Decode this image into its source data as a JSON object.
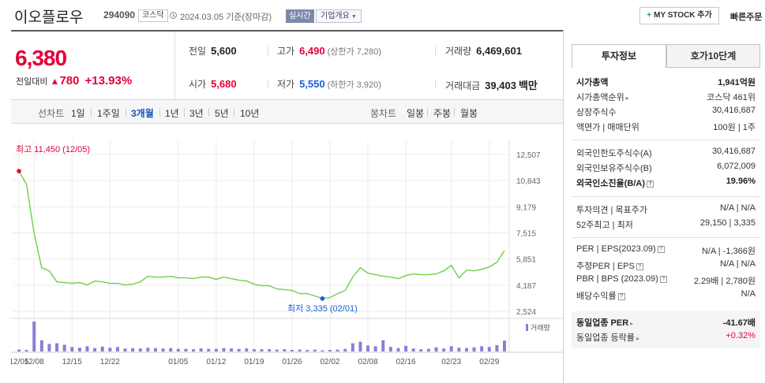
{
  "header": {
    "name": "이오플로우",
    "code": "294090",
    "market": "코스닥",
    "date": "2024.03.05 기준(장마감)",
    "realtime": "실시간",
    "company": "기업개요",
    "mystock": "MY STOCK 추가",
    "quick_order": "빠른주문"
  },
  "price": {
    "current": "6,380",
    "change_label": "전일대비",
    "change": "780",
    "change_pct": "+13.93%",
    "prev_label": "전일",
    "prev": "5,600",
    "open_label": "시가",
    "open": "5,680",
    "high_label": "고가",
    "high": "6,490",
    "upper_limit": "(상한가 7,280)",
    "low_label": "저가",
    "low": "5,550",
    "lower_limit": "(하한가 3,920)",
    "volume_label": "거래량",
    "volume": "6,469,601",
    "amount_label": "거래대금",
    "amount": "39,403",
    "amount_unit": "백만"
  },
  "tabs": {
    "line_label": "선차트",
    "periods": [
      "1일",
      "1주일",
      "3개월",
      "1년",
      "3년",
      "5년",
      "10년"
    ],
    "active": "3개월",
    "candle_label": "봉차트",
    "candles": [
      "일봉",
      "주봉",
      "월봉"
    ]
  },
  "chart_data": {
    "type": "line",
    "y_ticks": [
      "12,507",
      "10,843",
      "9,179",
      "7,515",
      "5,851",
      "4,187",
      "2,524"
    ],
    "ylim": [
      2524,
      12507
    ],
    "x_ticks": [
      "12/05",
      "12/08",
      "12/15",
      "12/22",
      "01/05",
      "01/12",
      "01/19",
      "01/26",
      "02/02",
      "02/08",
      "02/16",
      "02/23",
      "02/29"
    ],
    "volume_label": "거래량",
    "high_annotation": "최고 11,450 (12/05)",
    "low_annotation": "최저 3,335 (02/01)",
    "line_color": "#6fcf4a",
    "volume_color": "#8a7fd4",
    "prices": [
      11450,
      10600,
      7500,
      5300,
      5100,
      4400,
      4350,
      4300,
      4350,
      4200,
      4450,
      4400,
      4300,
      4300,
      4200,
      4250,
      4400,
      4750,
      4700,
      4700,
      4750,
      4650,
      4650,
      4600,
      4700,
      4700,
      4550,
      4700,
      4600,
      4500,
      4450,
      4250,
      4150,
      4150,
      3950,
      3900,
      3850,
      3650,
      3650,
      3500,
      3335,
      3400,
      3650,
      3850,
      4700,
      5300,
      4950,
      4850,
      4750,
      4700,
      4600,
      4800,
      4900,
      4850,
      4850,
      4900,
      5100,
      5450,
      4650,
      5150,
      5100,
      5200,
      5350,
      5650,
      6380
    ],
    "volumes": [
      5,
      4,
      80,
      30,
      20,
      22,
      18,
      12,
      10,
      14,
      9,
      13,
      10,
      12,
      8,
      9,
      8,
      10,
      9,
      8,
      9,
      7,
      7,
      6,
      8,
      7,
      7,
      9,
      8,
      7,
      8,
      6,
      6,
      6,
      5,
      6,
      4,
      5,
      4,
      5,
      3,
      4,
      5,
      7,
      22,
      26,
      16,
      14,
      30,
      12,
      9,
      15,
      8,
      6,
      7,
      11,
      8,
      14,
      10,
      9,
      11,
      14,
      12,
      17,
      29
    ]
  },
  "info_tabs": [
    "투자정보",
    "호가10단계"
  ],
  "info": {
    "market_cap_label": "시가총액",
    "market_cap": "1,941억원",
    "rank_label": "시가총액순위",
    "rank": "코스닥 461위",
    "shares_label": "상장주식수",
    "shares": "30,416,687",
    "par_label": "액면가",
    "unit_label": "매매단위",
    "par_unit": "100원",
    "unit_value": "1주",
    "foreign_limit_label": "외국인한도주식수(A)",
    "foreign_limit": "30,416,687",
    "foreign_hold_label": "외국인보유주식수(B)",
    "foreign_hold": "6,072,009",
    "foreign_ratio_label": "외국인소진율(B/A)",
    "foreign_ratio": "19.96%",
    "opinion_label": "투자의견",
    "target_label": "목표주가",
    "opinion": "N/A",
    "target": "N/A",
    "week52_label": "52주최고",
    "week52_low_label": "최저",
    "week52_high": "29,150",
    "week52_low": "3,335",
    "per_label": "PER",
    "eps_label": "EPS(2023.09)",
    "per": "N/A",
    "eps": "-1,366원",
    "est_per_label": "추정PER",
    "est_eps_label": "EPS",
    "est_per": "N/A",
    "est_eps": "N/A",
    "pbr_label": "PBR",
    "bps_label": "BPS (2023.09)",
    "pbr": "2.29배",
    "bps": "2,780원",
    "div_label": "배당수익률",
    "div": "N/A",
    "peer_per_label": "동일업종 PER",
    "peer_per": "-41.67배",
    "peer_chg_label": "동일업종 등락률",
    "peer_chg": "+0.32%"
  }
}
